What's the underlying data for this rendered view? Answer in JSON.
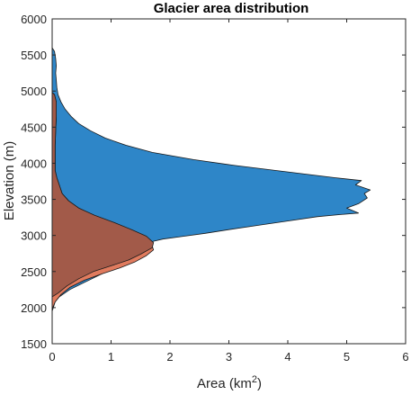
{
  "chart_data": {
    "type": "area",
    "title": "Glacier area distribution",
    "xlabel": "Area",
    "xlabel_unit_base": "km",
    "xlabel_unit_exp": "2",
    "ylabel": "Elevation (m)",
    "xlim": [
      0,
      6
    ],
    "ylim": [
      1500,
      6000
    ],
    "xticks": [
      0,
      1,
      2,
      3,
      4,
      5,
      6
    ],
    "yticks": [
      1500,
      2000,
      2500,
      3000,
      3500,
      4000,
      4500,
      5000,
      5500,
      6000
    ],
    "grid": false,
    "legend": "none",
    "series": [
      {
        "color": "#2e86c8",
        "points": [
          [
            0,
            1950
          ],
          [
            0.02,
            2000
          ],
          [
            0.05,
            2080
          ],
          [
            0.12,
            2150
          ],
          [
            0.3,
            2250
          ],
          [
            0.55,
            2350
          ],
          [
            0.8,
            2450
          ],
          [
            1.05,
            2550
          ],
          [
            1.25,
            2650
          ],
          [
            1.45,
            2750
          ],
          [
            1.6,
            2850
          ],
          [
            1.72,
            2920
          ],
          [
            1.88,
            2950
          ],
          [
            2.2,
            2985
          ],
          [
            2.6,
            3030
          ],
          [
            3.0,
            3080
          ],
          [
            3.5,
            3140
          ],
          [
            4.0,
            3200
          ],
          [
            4.5,
            3260
          ],
          [
            4.9,
            3290
          ],
          [
            5.2,
            3310
          ],
          [
            5.0,
            3380
          ],
          [
            5.2,
            3440
          ],
          [
            5.35,
            3520
          ],
          [
            5.3,
            3580
          ],
          [
            5.4,
            3630
          ],
          [
            5.15,
            3700
          ],
          [
            5.25,
            3760
          ],
          [
            4.8,
            3800
          ],
          [
            4.3,
            3850
          ],
          [
            3.8,
            3900
          ],
          [
            3.1,
            3970
          ],
          [
            2.4,
            4050
          ],
          [
            1.7,
            4150
          ],
          [
            1.25,
            4250
          ],
          [
            0.9,
            4350
          ],
          [
            0.65,
            4450
          ],
          [
            0.45,
            4550
          ],
          [
            0.32,
            4650
          ],
          [
            0.22,
            4750
          ],
          [
            0.15,
            4850
          ],
          [
            0.1,
            4950
          ],
          [
            0.08,
            5050
          ],
          [
            0.07,
            5150
          ],
          [
            0.06,
            5250
          ],
          [
            0.07,
            5350
          ],
          [
            0.06,
            5450
          ],
          [
            0.04,
            5550
          ],
          [
            0.0,
            5600
          ]
        ]
      },
      {
        "color": "#e07b5e",
        "points": [
          [
            0,
            1980
          ],
          [
            0.05,
            2080
          ],
          [
            0.15,
            2180
          ],
          [
            0.3,
            2280
          ],
          [
            0.55,
            2380
          ],
          [
            0.85,
            2470
          ],
          [
            1.15,
            2550
          ],
          [
            1.4,
            2630
          ],
          [
            1.6,
            2720
          ],
          [
            1.72,
            2800
          ],
          [
            1.68,
            2900
          ],
          [
            1.55,
            2990
          ],
          [
            1.3,
            3080
          ],
          [
            1.0,
            3180
          ],
          [
            0.7,
            3280
          ],
          [
            0.45,
            3380
          ],
          [
            0.28,
            3480
          ],
          [
            0.17,
            3580
          ],
          [
            0.12,
            3700
          ],
          [
            0.08,
            3800
          ],
          [
            0.05,
            3900
          ],
          [
            0.05,
            4050
          ],
          [
            0.05,
            4250
          ],
          [
            0.06,
            4450
          ],
          [
            0.07,
            4650
          ],
          [
            0.07,
            4850
          ],
          [
            0.04,
            4950
          ],
          [
            0.0,
            4980
          ]
        ]
      },
      {
        "color": "#a25a49",
        "points": [
          [
            0,
            2150
          ],
          [
            0.1,
            2200
          ],
          [
            0.25,
            2300
          ],
          [
            0.45,
            2400
          ],
          [
            0.7,
            2500
          ],
          [
            1.0,
            2580
          ],
          [
            1.3,
            2660
          ],
          [
            1.5,
            2740
          ],
          [
            1.7,
            2830
          ],
          [
            1.72,
            2900
          ],
          [
            1.6,
            2990
          ],
          [
            1.35,
            3080
          ],
          [
            1.05,
            3180
          ],
          [
            0.72,
            3280
          ],
          [
            0.45,
            3380
          ],
          [
            0.28,
            3480
          ],
          [
            0.17,
            3580
          ],
          [
            0.12,
            3700
          ],
          [
            0.08,
            3800
          ],
          [
            0.05,
            3900
          ],
          [
            0.05,
            4050
          ],
          [
            0.05,
            4250
          ],
          [
            0.06,
            4450
          ],
          [
            0.07,
            4650
          ],
          [
            0.07,
            4850
          ],
          [
            0.04,
            4950
          ],
          [
            0.0,
            4980
          ]
        ]
      }
    ]
  }
}
